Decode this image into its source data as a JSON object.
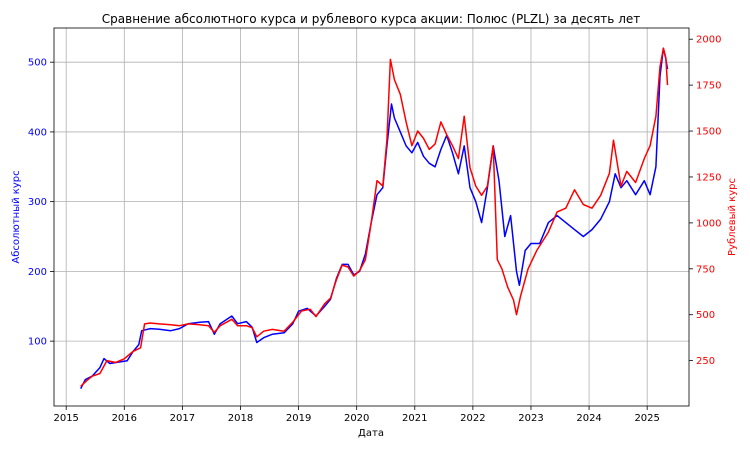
{
  "chart_data": {
    "type": "line",
    "title": "Сравнение абсолютного курса и рублевого курса акции: Полюс (PLZL) за десять лет",
    "xlabel": "Дата",
    "ylabel_left": "Абсолютный курс",
    "ylabel_right": "Рублевый курс",
    "x_ticks": [
      "2015",
      "2016",
      "2017",
      "2018",
      "2019",
      "2020",
      "2021",
      "2022",
      "2023",
      "2024",
      "2025"
    ],
    "y_left_ticks": [
      100,
      200,
      300,
      400,
      500
    ],
    "y_right_ticks": [
      250,
      500,
      750,
      1000,
      1250,
      1500,
      1750,
      2000
    ],
    "ylim_left": [
      7,
      549
    ],
    "ylim_right": [
      3,
      2061
    ],
    "xlim": [
      2014.79,
      2025.72
    ],
    "grid": true,
    "colors": {
      "left": "#0000ff",
      "right": "#ff0000",
      "grid": "#b0b0b0"
    },
    "series": [
      {
        "axis": "left",
        "color": "#0000ff",
        "points": [
          [
            2015.25,
            32
          ],
          [
            2015.33,
            45
          ],
          [
            2015.45,
            50
          ],
          [
            2015.58,
            62
          ],
          [
            2015.65,
            75
          ],
          [
            2015.75,
            68
          ],
          [
            2015.9,
            70
          ],
          [
            2016.05,
            72
          ],
          [
            2016.15,
            85
          ],
          [
            2016.25,
            95
          ],
          [
            2016.3,
            115
          ],
          [
            2016.45,
            118
          ],
          [
            2016.6,
            117
          ],
          [
            2016.8,
            115
          ],
          [
            2016.95,
            118
          ],
          [
            2017.1,
            125
          ],
          [
            2017.3,
            127
          ],
          [
            2017.45,
            128
          ],
          [
            2017.55,
            110
          ],
          [
            2017.65,
            125
          ],
          [
            2017.85,
            136
          ],
          [
            2017.95,
            125
          ],
          [
            2018.1,
            128
          ],
          [
            2018.2,
            120
          ],
          [
            2018.28,
            98
          ],
          [
            2018.4,
            105
          ],
          [
            2018.55,
            110
          ],
          [
            2018.75,
            112
          ],
          [
            2018.9,
            125
          ],
          [
            2019.0,
            143
          ],
          [
            2019.15,
            147
          ],
          [
            2019.3,
            136
          ],
          [
            2019.45,
            150
          ],
          [
            2019.55,
            160
          ],
          [
            2019.65,
            190
          ],
          [
            2019.75,
            210
          ],
          [
            2019.85,
            210
          ],
          [
            2019.95,
            195
          ],
          [
            2020.05,
            200
          ],
          [
            2020.15,
            225
          ],
          [
            2020.25,
            270
          ],
          [
            2020.35,
            310
          ],
          [
            2020.45,
            320
          ],
          [
            2020.52,
            380
          ],
          [
            2020.6,
            440
          ],
          [
            2020.65,
            420
          ],
          [
            2020.75,
            400
          ],
          [
            2020.85,
            380
          ],
          [
            2020.95,
            370
          ],
          [
            2021.05,
            385
          ],
          [
            2021.15,
            365
          ],
          [
            2021.25,
            355
          ],
          [
            2021.35,
            350
          ],
          [
            2021.45,
            375
          ],
          [
            2021.55,
            395
          ],
          [
            2021.65,
            370
          ],
          [
            2021.75,
            340
          ],
          [
            2021.85,
            380
          ],
          [
            2021.95,
            320
          ],
          [
            2022.05,
            300
          ],
          [
            2022.15,
            270
          ],
          [
            2022.25,
            320
          ],
          [
            2022.35,
            380
          ],
          [
            2022.45,
            330
          ],
          [
            2022.55,
            250
          ],
          [
            2022.65,
            280
          ],
          [
            2022.75,
            200
          ],
          [
            2022.8,
            180
          ],
          [
            2022.9,
            230
          ],
          [
            2023.0,
            240
          ],
          [
            2023.15,
            240
          ],
          [
            2023.3,
            270
          ],
          [
            2023.45,
            280
          ],
          [
            2023.6,
            270
          ],
          [
            2023.75,
            260
          ],
          [
            2023.9,
            250
          ],
          [
            2024.05,
            260
          ],
          [
            2024.2,
            275
          ],
          [
            2024.35,
            300
          ],
          [
            2024.45,
            340
          ],
          [
            2024.55,
            320
          ],
          [
            2024.65,
            330
          ],
          [
            2024.8,
            310
          ],
          [
            2024.95,
            330
          ],
          [
            2025.05,
            310
          ],
          [
            2025.15,
            350
          ],
          [
            2025.22,
            480
          ],
          [
            2025.28,
            520
          ],
          [
            2025.32,
            505
          ],
          [
            2025.35,
            490
          ]
        ]
      },
      {
        "axis": "right",
        "color": "#ff0000",
        "points": [
          [
            2015.25,
            110
          ],
          [
            2015.35,
            140
          ],
          [
            2015.45,
            165
          ],
          [
            2015.58,
            180
          ],
          [
            2015.7,
            250
          ],
          [
            2015.85,
            240
          ],
          [
            2016.0,
            260
          ],
          [
            2016.15,
            300
          ],
          [
            2016.28,
            320
          ],
          [
            2016.35,
            450
          ],
          [
            2016.45,
            455
          ],
          [
            2016.6,
            450
          ],
          [
            2016.8,
            445
          ],
          [
            2016.95,
            440
          ],
          [
            2017.1,
            450
          ],
          [
            2017.3,
            445
          ],
          [
            2017.45,
            440
          ],
          [
            2017.55,
            405
          ],
          [
            2017.65,
            440
          ],
          [
            2017.85,
            475
          ],
          [
            2017.95,
            440
          ],
          [
            2018.1,
            440
          ],
          [
            2018.2,
            430
          ],
          [
            2018.28,
            380
          ],
          [
            2018.4,
            410
          ],
          [
            2018.55,
            420
          ],
          [
            2018.75,
            410
          ],
          [
            2018.9,
            460
          ],
          [
            2019.05,
            520
          ],
          [
            2019.2,
            530
          ],
          [
            2019.3,
            490
          ],
          [
            2019.45,
            560
          ],
          [
            2019.55,
            590
          ],
          [
            2019.65,
            690
          ],
          [
            2019.75,
            770
          ],
          [
            2019.85,
            760
          ],
          [
            2019.95,
            710
          ],
          [
            2020.05,
            740
          ],
          [
            2020.15,
            800
          ],
          [
            2020.25,
            1000
          ],
          [
            2020.35,
            1230
          ],
          [
            2020.45,
            1200
          ],
          [
            2020.52,
            1450
          ],
          [
            2020.58,
            1890
          ],
          [
            2020.65,
            1780
          ],
          [
            2020.75,
            1700
          ],
          [
            2020.85,
            1550
          ],
          [
            2020.95,
            1420
          ],
          [
            2021.05,
            1500
          ],
          [
            2021.15,
            1460
          ],
          [
            2021.25,
            1400
          ],
          [
            2021.35,
            1430
          ],
          [
            2021.45,
            1550
          ],
          [
            2021.55,
            1480
          ],
          [
            2021.65,
            1420
          ],
          [
            2021.75,
            1350
          ],
          [
            2021.85,
            1580
          ],
          [
            2021.95,
            1300
          ],
          [
            2022.05,
            1200
          ],
          [
            2022.15,
            1150
          ],
          [
            2022.25,
            1200
          ],
          [
            2022.35,
            1420
          ],
          [
            2022.42,
            800
          ],
          [
            2022.5,
            750
          ],
          [
            2022.6,
            650
          ],
          [
            2022.7,
            580
          ],
          [
            2022.75,
            500
          ],
          [
            2022.82,
            600
          ],
          [
            2022.95,
            750
          ],
          [
            2023.1,
            850
          ],
          [
            2023.3,
            950
          ],
          [
            2023.45,
            1060
          ],
          [
            2023.6,
            1080
          ],
          [
            2023.75,
            1180
          ],
          [
            2023.9,
            1100
          ],
          [
            2024.05,
            1080
          ],
          [
            2024.2,
            1150
          ],
          [
            2024.35,
            1270
          ],
          [
            2024.42,
            1450
          ],
          [
            2024.55,
            1200
          ],
          [
            2024.65,
            1280
          ],
          [
            2024.8,
            1220
          ],
          [
            2024.95,
            1350
          ],
          [
            2025.05,
            1420
          ],
          [
            2025.15,
            1580
          ],
          [
            2025.22,
            1850
          ],
          [
            2025.28,
            1950
          ],
          [
            2025.32,
            1900
          ],
          [
            2025.35,
            1750
          ]
        ]
      }
    ]
  }
}
